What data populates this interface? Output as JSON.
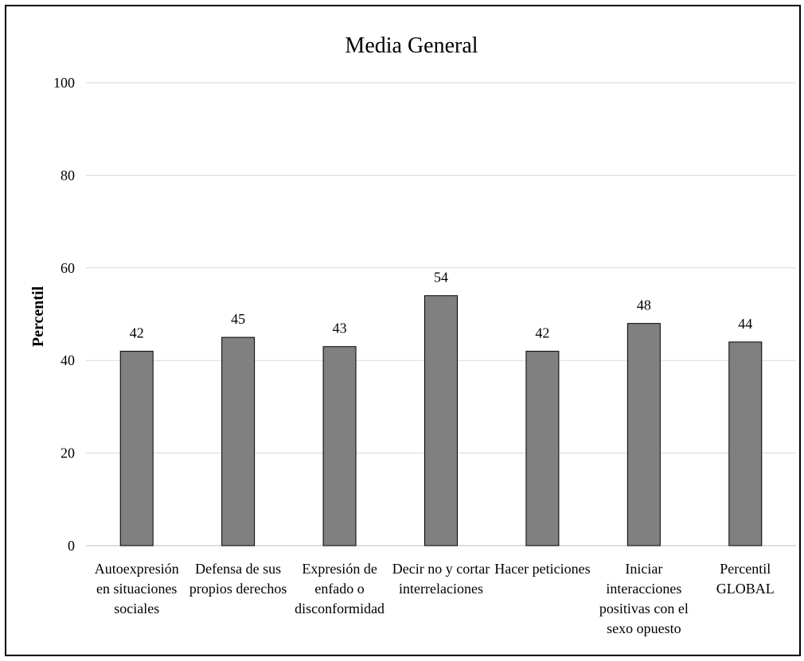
{
  "chart_data": {
    "type": "bar",
    "title": "Media General",
    "xlabel": "",
    "ylabel": "Percentil",
    "ylim": [
      0,
      100
    ],
    "yticks": [
      0,
      20,
      40,
      60,
      80,
      100
    ],
    "grid": true,
    "legend": "none",
    "bar_color": "#808080",
    "bar_edge_color": "#000000",
    "gridline_color": "#d9d9d9",
    "categories": [
      "Autoexpresión en situaciones sociales",
      "Defensa de sus propios derechos",
      "Expresión de enfado o disconformidad",
      "Decir no y cortar interrelaciones",
      "Hacer peticiones",
      "Iniciar interacciones positivas con el sexo opuesto",
      "Percentil GLOBAL"
    ],
    "category_label_lines": [
      [
        "Autoexpresión",
        "en situaciones",
        "sociales"
      ],
      [
        "Defensa de sus",
        "propios derechos"
      ],
      [
        "Expresión de",
        "enfado o",
        "disconformidad"
      ],
      [
        "Decir no y cortar",
        "interrelaciones"
      ],
      [
        "Hacer peticiones"
      ],
      [
        "Iniciar",
        "interacciones",
        "positivas con el",
        "sexo opuesto"
      ],
      [
        "Percentil",
        "GLOBAL"
      ]
    ],
    "values": [
      42,
      45,
      43,
      54,
      42,
      48,
      44
    ]
  }
}
